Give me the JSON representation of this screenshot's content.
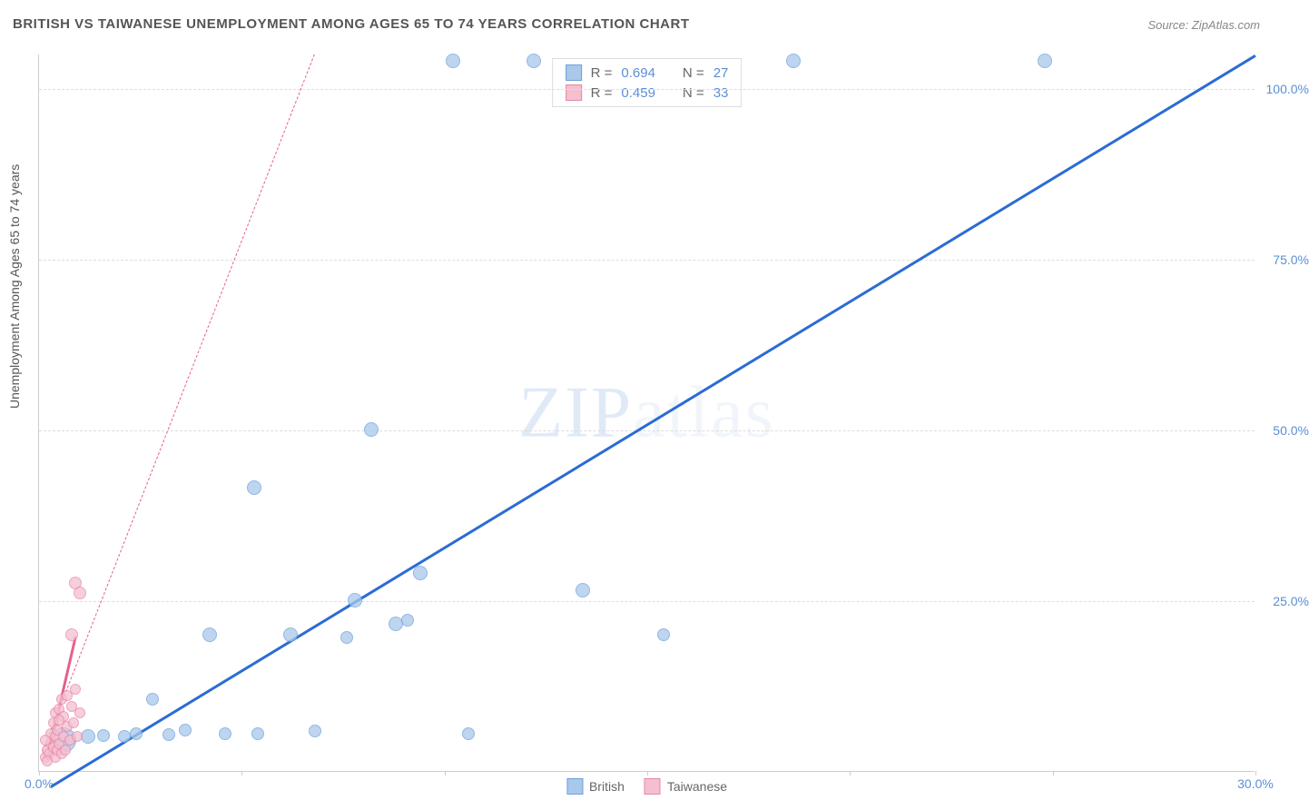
{
  "title": "BRITISH VS TAIWANESE UNEMPLOYMENT AMONG AGES 65 TO 74 YEARS CORRELATION CHART",
  "source": "Source: ZipAtlas.com",
  "watermark": "ZIPatlas",
  "ylabel": "Unemployment Among Ages 65 to 74 years",
  "chart": {
    "type": "scatter",
    "xlim": [
      0,
      30
    ],
    "ylim": [
      0,
      105
    ],
    "x_ticks": [
      0,
      5,
      10,
      15,
      20,
      25,
      30
    ],
    "x_tick_labels": [
      "0.0%",
      "",
      "",
      "",
      "",
      "",
      "30.0%"
    ],
    "y_ticks": [
      25,
      50,
      75,
      100
    ],
    "y_tick_labels": [
      "25.0%",
      "50.0%",
      "75.0%",
      "100.0%"
    ],
    "background_color": "#ffffff",
    "grid_color": "#dddddd"
  },
  "series": [
    {
      "name": "British",
      "color_fill": "#a9c8ea",
      "color_stroke": "#6da0dd",
      "trend_color": "#2a6cd4",
      "trend_dashed": false,
      "trend": {
        "x1": 0.3,
        "y1": -2,
        "x2": 30,
        "y2": 105
      },
      "stats": {
        "R": "0.694",
        "N": "27"
      },
      "points": [
        {
          "x": 0.6,
          "y": 4.5,
          "r": 14
        },
        {
          "x": 1.2,
          "y": 5.0,
          "r": 8
        },
        {
          "x": 1.6,
          "y": 5.2,
          "r": 7
        },
        {
          "x": 2.1,
          "y": 5.0,
          "r": 7
        },
        {
          "x": 2.4,
          "y": 5.5,
          "r": 7
        },
        {
          "x": 2.8,
          "y": 10.5,
          "r": 7
        },
        {
          "x": 3.2,
          "y": 5.3,
          "r": 7
        },
        {
          "x": 3.6,
          "y": 6.0,
          "r": 7
        },
        {
          "x": 4.2,
          "y": 20.0,
          "r": 8
        },
        {
          "x": 4.6,
          "y": 5.5,
          "r": 7
        },
        {
          "x": 5.3,
          "y": 41.5,
          "r": 8
        },
        {
          "x": 5.4,
          "y": 5.5,
          "r": 7
        },
        {
          "x": 6.2,
          "y": 20.0,
          "r": 8
        },
        {
          "x": 6.8,
          "y": 5.8,
          "r": 7
        },
        {
          "x": 7.6,
          "y": 19.5,
          "r": 7
        },
        {
          "x": 7.8,
          "y": 25.0,
          "r": 8
        },
        {
          "x": 8.2,
          "y": 50.0,
          "r": 8
        },
        {
          "x": 8.8,
          "y": 21.5,
          "r": 8
        },
        {
          "x": 9.1,
          "y": 22.0,
          "r": 7
        },
        {
          "x": 9.4,
          "y": 29.0,
          "r": 8
        },
        {
          "x": 10.2,
          "y": 104.0,
          "r": 8
        },
        {
          "x": 10.6,
          "y": 5.5,
          "r": 7
        },
        {
          "x": 12.2,
          "y": 104.0,
          "r": 8
        },
        {
          "x": 13.4,
          "y": 26.5,
          "r": 8
        },
        {
          "x": 15.4,
          "y": 20.0,
          "r": 7
        },
        {
          "x": 18.6,
          "y": 104.0,
          "r": 8
        },
        {
          "x": 24.8,
          "y": 104.0,
          "r": 8
        }
      ]
    },
    {
      "name": "Taiwanese",
      "color_fill": "#f4c0cf",
      "color_stroke": "#e986a8",
      "trend_color": "#e56091",
      "trend_dashed": true,
      "trend": {
        "x1": 0.1,
        "y1": 3,
        "x2": 6.8,
        "y2": 105
      },
      "trend_solid_short": {
        "x1": 0.2,
        "y1": 2,
        "x2": 0.9,
        "y2": 20
      },
      "stats": {
        "R": "0.459",
        "N": "33"
      },
      "points": [
        {
          "x": 0.15,
          "y": 2.0,
          "r": 6
        },
        {
          "x": 0.2,
          "y": 3.0,
          "r": 6
        },
        {
          "x": 0.25,
          "y": 2.5,
          "r": 6
        },
        {
          "x": 0.3,
          "y": 4.0,
          "r": 6
        },
        {
          "x": 0.3,
          "y": 5.5,
          "r": 6
        },
        {
          "x": 0.35,
          "y": 3.5,
          "r": 6
        },
        {
          "x": 0.35,
          "y": 7.0,
          "r": 6
        },
        {
          "x": 0.4,
          "y": 2.0,
          "r": 6
        },
        {
          "x": 0.4,
          "y": 5.0,
          "r": 6
        },
        {
          "x": 0.4,
          "y": 8.5,
          "r": 6
        },
        {
          "x": 0.45,
          "y": 3.0,
          "r": 6
        },
        {
          "x": 0.45,
          "y": 6.0,
          "r": 6
        },
        {
          "x": 0.5,
          "y": 4.0,
          "r": 6
        },
        {
          "x": 0.5,
          "y": 9.0,
          "r": 6
        },
        {
          "x": 0.55,
          "y": 2.5,
          "r": 6
        },
        {
          "x": 0.55,
          "y": 10.5,
          "r": 6
        },
        {
          "x": 0.6,
          "y": 5.0,
          "r": 6
        },
        {
          "x": 0.6,
          "y": 8.0,
          "r": 6
        },
        {
          "x": 0.65,
          "y": 3.0,
          "r": 6
        },
        {
          "x": 0.7,
          "y": 6.5,
          "r": 6
        },
        {
          "x": 0.7,
          "y": 11.0,
          "r": 6
        },
        {
          "x": 0.75,
          "y": 4.5,
          "r": 6
        },
        {
          "x": 0.8,
          "y": 9.5,
          "r": 6
        },
        {
          "x": 0.8,
          "y": 20.0,
          "r": 7
        },
        {
          "x": 0.85,
          "y": 7.0,
          "r": 6
        },
        {
          "x": 0.9,
          "y": 12.0,
          "r": 6
        },
        {
          "x": 0.9,
          "y": 27.5,
          "r": 7
        },
        {
          "x": 0.95,
          "y": 5.0,
          "r": 6
        },
        {
          "x": 1.0,
          "y": 8.5,
          "r": 6
        },
        {
          "x": 1.0,
          "y": 26.0,
          "r": 7
        },
        {
          "x": 0.2,
          "y": 1.5,
          "r": 6
        },
        {
          "x": 0.15,
          "y": 4.5,
          "r": 6
        },
        {
          "x": 0.5,
          "y": 7.5,
          "r": 6
        }
      ]
    }
  ],
  "legend_series": [
    {
      "label": "British",
      "fill": "#a9c8ea",
      "stroke": "#6da0dd"
    },
    {
      "label": "Taiwanese",
      "fill": "#f4c0cf",
      "stroke": "#e986a8"
    }
  ]
}
